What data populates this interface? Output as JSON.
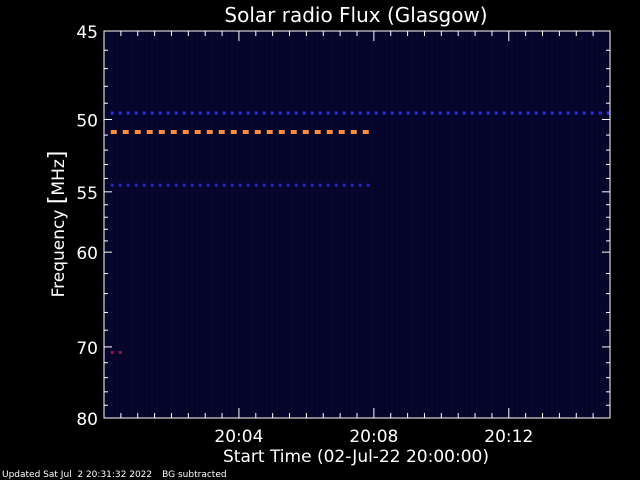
{
  "chart_data": {
    "type": "heatmap",
    "title": "Solar radio Flux (Glasgow)",
    "xlabel": "Start Time (02-Jul-22 20:00:00)",
    "ylabel_prefix": "Frequency ",
    "ylabel_unit": "MHz",
    "x_ticks": [
      "20:04",
      "20:08",
      "20:12"
    ],
    "x_tick_minutes": [
      4,
      8,
      12
    ],
    "x_range_minutes": [
      0,
      15
    ],
    "y_ticks": [
      45,
      50,
      55,
      60,
      70,
      80
    ],
    "y_range_mhz": [
      45,
      80
    ],
    "y_axis_scale": "reciprocal",
    "background_color": "#000000",
    "plot_color": "#05052a",
    "series": [
      {
        "frequency_mhz": 50.8,
        "start_min": 0.2,
        "end_min": 8.0,
        "color": "#ff8c3a",
        "intensity": "high"
      },
      {
        "frequency_mhz": 49.6,
        "start_min": 0.2,
        "end_min": 15.0,
        "color": "#2a2aff",
        "intensity": "low"
      },
      {
        "frequency_mhz": 54.5,
        "start_min": 0.2,
        "end_min": 8.0,
        "color": "#2020cc",
        "intensity": "low"
      },
      {
        "frequency_mhz": 70.7,
        "start_min": 0.2,
        "end_min": 0.6,
        "color": "#a01050",
        "intensity": "medium"
      }
    ]
  },
  "footer": {
    "updated": "Updated Sat Jul  2 20:31:32 2022",
    "note": "BG subtracted"
  }
}
